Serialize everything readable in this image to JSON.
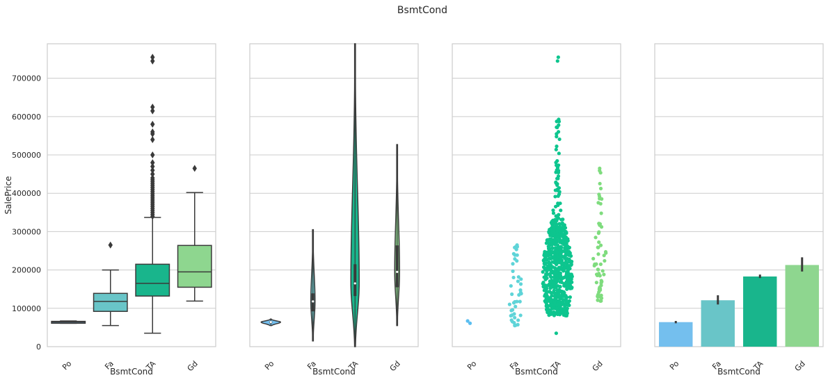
{
  "title": "BsmtCond",
  "colors": {
    "Po": "#74bfee",
    "Fa": "#69c5c8",
    "TA": "#19b58c",
    "Gd": "#8ed68f",
    "swarm_Po": "#5bbef0",
    "swarm_Fa": "#5fd4d8",
    "swarm_TA": "#0dc58e",
    "swarm_Gd": "#7fdc7e",
    "grid": "#cccccc",
    "dark": "#3a3a3a"
  },
  "chart_data": [
    {
      "type": "box",
      "xlabel": "BsmtCond",
      "ylabel": "SalePrice",
      "categories": [
        "Po",
        "Fa",
        "TA",
        "Gd"
      ],
      "ylim": [
        0,
        790000
      ],
      "yticks": [
        0,
        100000,
        200000,
        300000,
        400000,
        500000,
        600000,
        700000
      ],
      "boxes": [
        {
          "category": "Po",
          "q1": 61000,
          "median": 64000,
          "q3": 66000,
          "whisker_low": 61000,
          "whisker_high": 67000,
          "outliers": []
        },
        {
          "category": "Fa",
          "q1": 92000,
          "median": 118000,
          "q3": 139000,
          "whisker_low": 55000,
          "whisker_high": 200000,
          "outliers": [
            265000
          ]
        },
        {
          "category": "TA",
          "q1": 132000,
          "median": 165000,
          "q3": 215000,
          "whisker_low": 35000,
          "whisker_high": 337000,
          "outliers": [
            340000,
            345000,
            350000,
            355000,
            360000,
            365000,
            370000,
            375000,
            380000,
            385000,
            390000,
            395000,
            400000,
            405000,
            410000,
            415000,
            420000,
            425000,
            430000,
            435000,
            440000,
            450000,
            460000,
            470000,
            480000,
            500000,
            540000,
            555000,
            560000,
            580000,
            615000,
            625000,
            745000,
            755000
          ]
        },
        {
          "category": "Gd",
          "q1": 155000,
          "median": 195000,
          "q3": 264000,
          "whisker_low": 119000,
          "whisker_high": 402000,
          "outliers": [
            465000
          ]
        }
      ]
    },
    {
      "type": "violin",
      "xlabel": "BsmtCond",
      "categories": [
        "Po",
        "Fa",
        "TA",
        "Gd"
      ],
      "ylim": [
        0,
        790000
      ],
      "violins": [
        {
          "category": "Po",
          "min": 55000,
          "max": 72000,
          "q1": 61000,
          "median": 64000,
          "q3": 66000
        },
        {
          "category": "Fa",
          "min": 15000,
          "max": 305000,
          "q1": 92000,
          "median": 118000,
          "q3": 139000
        },
        {
          "category": "TA",
          "min": 0,
          "max": 790000,
          "q1": 132000,
          "median": 165000,
          "q3": 215000
        },
        {
          "category": "Gd",
          "min": 55000,
          "max": 527000,
          "q1": 155000,
          "median": 195000,
          "q3": 264000
        }
      ]
    },
    {
      "type": "scatter",
      "subtype": "swarm",
      "xlabel": "BsmtCond",
      "categories": [
        "Po",
        "Fa",
        "TA",
        "Gd"
      ],
      "ylim": [
        0,
        790000
      ],
      "groups": [
        {
          "category": "Po",
          "n": 2,
          "min": 61000,
          "max": 67000
        },
        {
          "category": "Fa",
          "n": 45,
          "min": 55000,
          "max": 265000
        },
        {
          "category": "TA",
          "n": 1311,
          "min": 35000,
          "max": 755000
        },
        {
          "category": "Gd",
          "n": 65,
          "min": 119000,
          "max": 465000
        }
      ]
    },
    {
      "type": "bar",
      "xlabel": "BsmtCond",
      "categories": [
        "Po",
        "Fa",
        "TA",
        "Gd"
      ],
      "values": [
        64000,
        121000,
        183000,
        213000
      ],
      "ci_low": [
        61000,
        110000,
        179000,
        196000
      ],
      "ci_high": [
        67000,
        134000,
        188000,
        233000
      ],
      "ylim": [
        0,
        790000
      ]
    }
  ]
}
